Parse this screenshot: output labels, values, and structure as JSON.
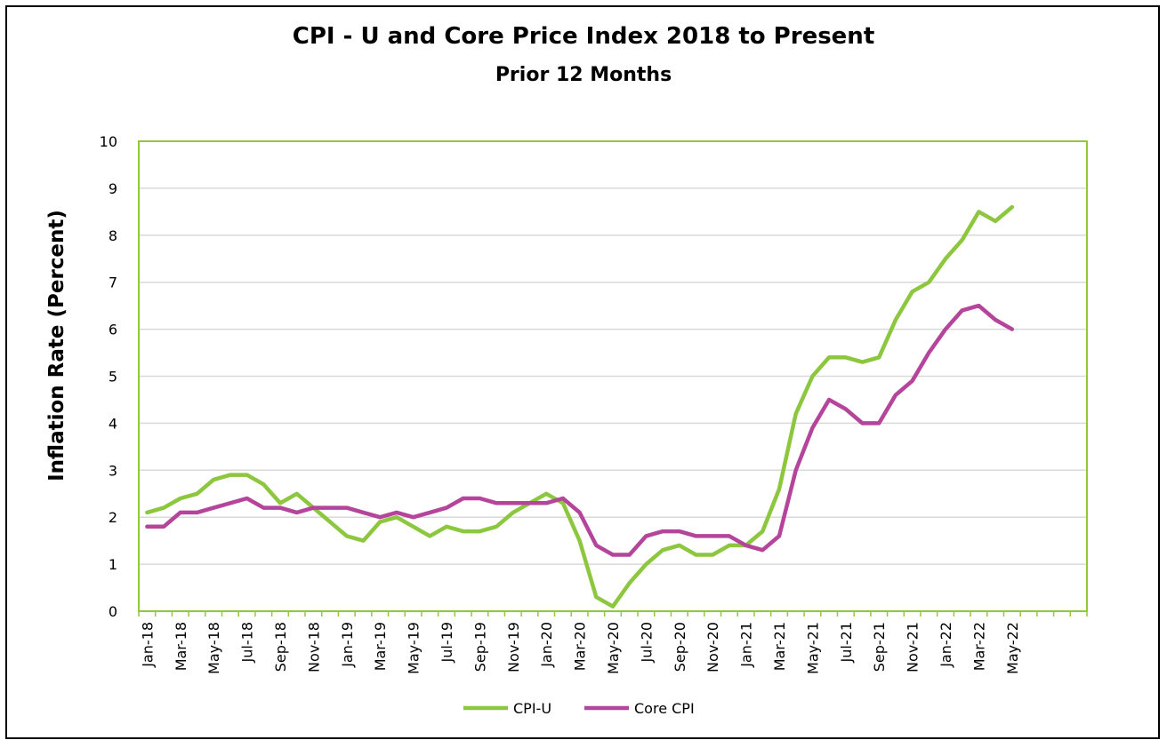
{
  "chart_data": {
    "type": "line",
    "title": "CPI - U and Core Price Index 2018 to Present",
    "subtitle": "Prior 12 Months",
    "xlabel": "",
    "ylabel": "Inflation Rate (Percent)",
    "ylim": [
      0,
      10
    ],
    "yticks": [
      0,
      1,
      2,
      3,
      4,
      5,
      6,
      7,
      8,
      9,
      10
    ],
    "grid": "horizontal",
    "legend_position": "bottom",
    "plot_border_color": "#92c83e",
    "x": [
      "Jan-18",
      "Feb-18",
      "Mar-18",
      "Apr-18",
      "May-18",
      "Jun-18",
      "Jul-18",
      "Aug-18",
      "Sep-18",
      "Oct-18",
      "Nov-18",
      "Dec-18",
      "Jan-19",
      "Feb-19",
      "Mar-19",
      "Apr-19",
      "May-19",
      "Jun-19",
      "Jul-19",
      "Aug-19",
      "Sep-19",
      "Oct-19",
      "Nov-19",
      "Dec-19",
      "Jan-20",
      "Feb-20",
      "Mar-20",
      "Apr-20",
      "May-20",
      "Jun-20",
      "Jul-20",
      "Aug-20",
      "Sep-20",
      "Oct-20",
      "Nov-20",
      "Dec-20",
      "Jan-21",
      "Feb-21",
      "Mar-21",
      "Apr-21",
      "May-21",
      "Jun-21",
      "Jul-21",
      "Aug-21",
      "Sep-21",
      "Oct-21",
      "Nov-21",
      "Dec-21",
      "Jan-22",
      "Feb-22",
      "Mar-22",
      "Apr-22",
      "May-22"
    ],
    "x_tick_labels": [
      "Jan-18",
      "Mar-18",
      "May-18",
      "Jul-18",
      "Sep-18",
      "Nov-18",
      "Jan-19",
      "Mar-19",
      "May-19",
      "Jul-19",
      "Sep-19",
      "Nov-19",
      "Jan-20",
      "Mar-20",
      "May-20",
      "Jul-20",
      "Sep-20",
      "Nov-20",
      "Jan-21",
      "Mar-21",
      "May-21",
      "Jul-21",
      "Sep-21",
      "Nov-21",
      "Jan-22",
      "Mar-22",
      "May-22"
    ],
    "x_slots": 57,
    "series": [
      {
        "name": "CPI-U",
        "color": "#8dc63f",
        "values": [
          2.1,
          2.2,
          2.4,
          2.5,
          2.8,
          2.9,
          2.9,
          2.7,
          2.3,
          2.5,
          2.2,
          1.9,
          1.6,
          1.5,
          1.9,
          2.0,
          1.8,
          1.6,
          1.8,
          1.7,
          1.7,
          1.8,
          2.1,
          2.3,
          2.5,
          2.3,
          1.5,
          0.3,
          0.1,
          0.6,
          1.0,
          1.3,
          1.4,
          1.2,
          1.2,
          1.4,
          1.4,
          1.7,
          2.6,
          4.2,
          5.0,
          5.4,
          5.4,
          5.3,
          5.4,
          6.2,
          6.8,
          7.0,
          7.5,
          7.9,
          8.5,
          8.3,
          8.6
        ]
      },
      {
        "name": "Core CPI",
        "color": "#b5459b",
        "values": [
          1.8,
          1.8,
          2.1,
          2.1,
          2.2,
          2.3,
          2.4,
          2.2,
          2.2,
          2.1,
          2.2,
          2.2,
          2.2,
          2.1,
          2.0,
          2.1,
          2.0,
          2.1,
          2.2,
          2.4,
          2.4,
          2.3,
          2.3,
          2.3,
          2.3,
          2.4,
          2.1,
          1.4,
          1.2,
          1.2,
          1.6,
          1.7,
          1.7,
          1.6,
          1.6,
          1.6,
          1.4,
          1.3,
          1.6,
          3.0,
          3.9,
          4.5,
          4.3,
          4.0,
          4.0,
          4.6,
          4.9,
          5.5,
          6.0,
          6.4,
          6.5,
          6.2,
          6.0
        ]
      }
    ]
  }
}
